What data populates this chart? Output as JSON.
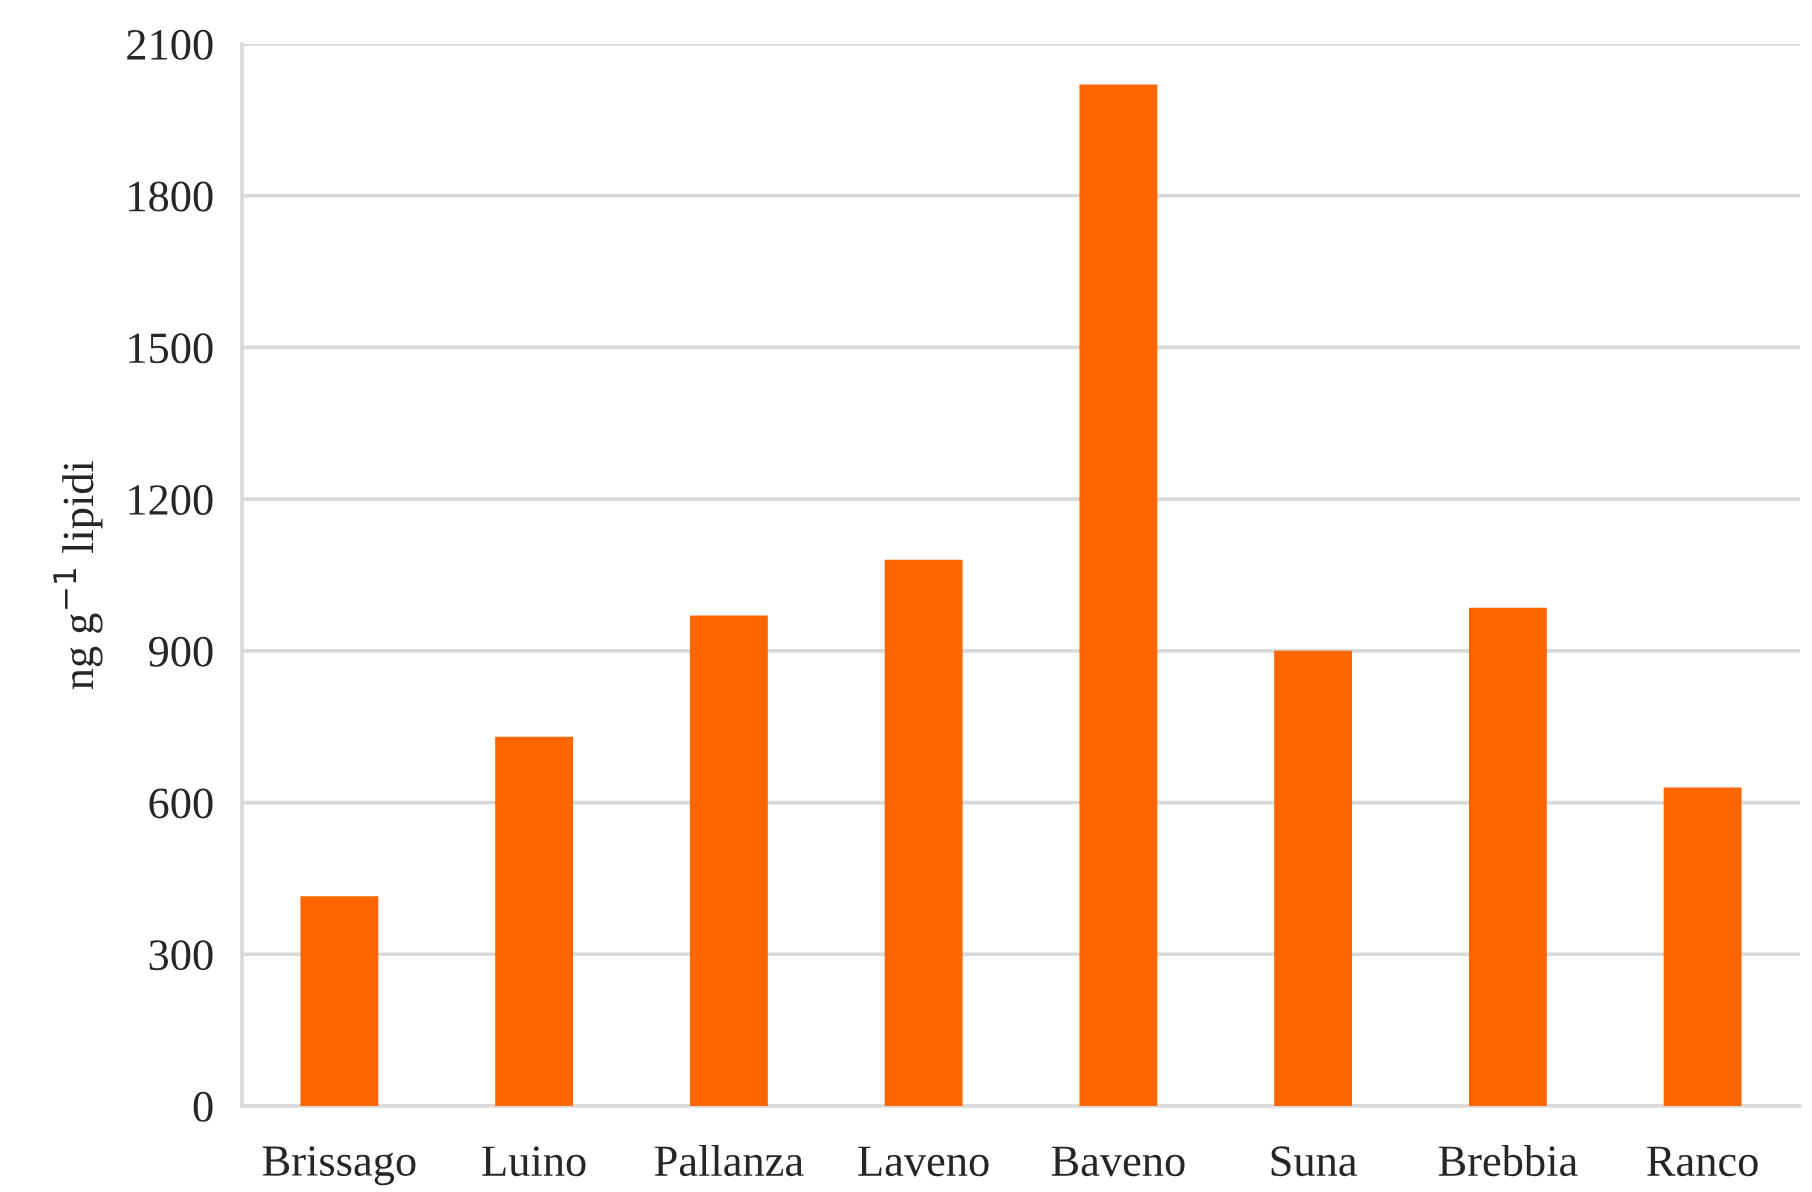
{
  "chart_data": {
    "type": "bar",
    "ylabel": "ng g$^{−1}$ lipidi",
    "categories": [
      "Brissago",
      "Luino",
      "Pallanza",
      "Laveno",
      "Baveno",
      "Suna",
      "Brebbia",
      "Ranco"
    ],
    "values": [
      415,
      730,
      970,
      1080,
      2020,
      900,
      985,
      630
    ],
    "color": "#ff6600",
    "ylim": [
      0,
      2100
    ],
    "yticks": [
      0,
      300,
      600,
      900,
      1200,
      1500,
      1800,
      2100
    ],
    "grid": "y"
  }
}
